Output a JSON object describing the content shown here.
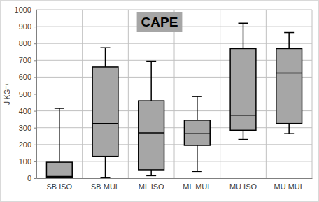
{
  "chart_data": {
    "type": "box",
    "title": "CAPE",
    "y_label": "J KG⁻¹",
    "categories": [
      "SB ISO",
      "SB MUL",
      "ML ISO",
      "ML MUL",
      "MU ISO",
      "MU MUL"
    ],
    "boxes": {
      "min": [
        5,
        5,
        15,
        40,
        230,
        265
      ],
      "q1": [
        5,
        130,
        50,
        195,
        285,
        325
      ],
      "median": [
        10,
        325,
        270,
        265,
        375,
        625
      ],
      "q3": [
        95,
        660,
        460,
        345,
        770,
        770
      ],
      "max": [
        415,
        775,
        695,
        485,
        920,
        865
      ]
    },
    "color": "#a6a6a6",
    "ylim": [
      0,
      1000
    ],
    "yticks": [
      0,
      100,
      200,
      300,
      400,
      500,
      600,
      700,
      800,
      900,
      1000
    ],
    "grid": true
  }
}
